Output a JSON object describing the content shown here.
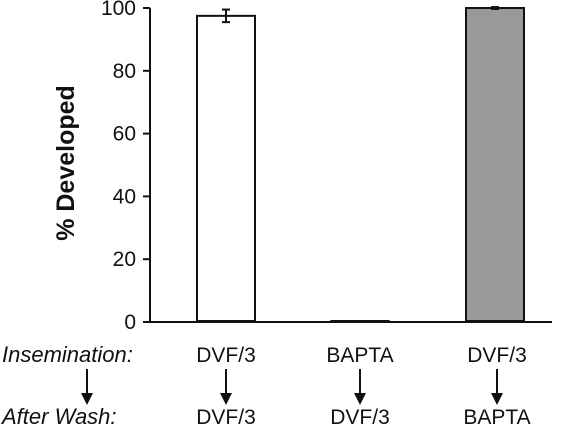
{
  "chart_data": {
    "type": "bar",
    "ylabel": "% Developed",
    "xlabel": "",
    "ylim": [
      0,
      100
    ],
    "yticks": [
      0,
      20,
      40,
      60,
      80,
      100
    ],
    "grid": false,
    "values": [
      97.5,
      0.2,
      100
    ],
    "errors": [
      2,
      0,
      0.3
    ],
    "bar_colors": [
      "#ffffff",
      "#ffffff",
      "#999999"
    ],
    "row_labels": {
      "first": "Insemination:",
      "second": "After Wash:"
    },
    "categories": [
      {
        "insemination": "DVF/3",
        "after_wash": "DVF/3"
      },
      {
        "insemination": "BAPTA",
        "after_wash": "DVF/3"
      },
      {
        "insemination": "DVF/3",
        "after_wash": "BAPTA"
      }
    ]
  }
}
